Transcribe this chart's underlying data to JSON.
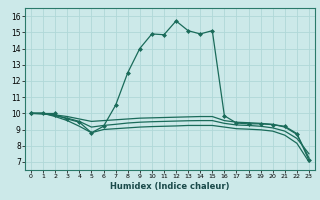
{
  "xlabel": "Humidex (Indice chaleur)",
  "xlim": [
    -0.5,
    23.5
  ],
  "ylim": [
    6.5,
    16.5
  ],
  "xticks": [
    0,
    1,
    2,
    3,
    4,
    5,
    6,
    7,
    8,
    9,
    10,
    11,
    12,
    13,
    14,
    15,
    16,
    17,
    18,
    19,
    20,
    21,
    22,
    23
  ],
  "yticks": [
    7,
    8,
    9,
    10,
    11,
    12,
    13,
    14,
    15,
    16
  ],
  "bg_color": "#cce9e9",
  "grid_color": "#b0d8d8",
  "line_color": "#1a6b5a",
  "series": [
    {
      "x": [
        0,
        1,
        2
      ],
      "y": [
        10,
        10,
        10
      ],
      "marker": true
    },
    {
      "x": [
        0,
        2,
        3,
        4,
        5,
        6,
        7,
        8,
        9,
        10,
        11,
        12,
        13,
        14,
        15,
        16,
        17,
        18,
        19,
        20,
        21,
        22,
        23
      ],
      "y": [
        10,
        9.9,
        9.65,
        9.45,
        8.8,
        9.2,
        10.5,
        12.5,
        14.0,
        14.9,
        14.85,
        15.7,
        15.1,
        14.9,
        15.1,
        9.85,
        9.4,
        9.35,
        9.35,
        9.3,
        9.2,
        8.75,
        7.1
      ],
      "marker": true
    },
    {
      "x": [
        0,
        1,
        2,
        3,
        4,
        5,
        6,
        7,
        8,
        9,
        10,
        11,
        12,
        13,
        14,
        15,
        16,
        17,
        18,
        19,
        20,
        21,
        22,
        23
      ],
      "y": [
        10,
        10,
        9.9,
        9.8,
        9.65,
        9.5,
        9.55,
        9.6,
        9.65,
        9.7,
        9.72,
        9.74,
        9.76,
        9.78,
        9.8,
        9.8,
        9.55,
        9.45,
        9.42,
        9.38,
        9.32,
        9.15,
        8.7,
        7.25
      ],
      "marker": false
    },
    {
      "x": [
        0,
        1,
        2,
        3,
        4,
        5,
        6,
        7,
        8,
        9,
        10,
        11,
        12,
        13,
        14,
        15,
        16,
        17,
        18,
        19,
        20,
        21,
        22,
        23
      ],
      "y": [
        10,
        10,
        9.85,
        9.7,
        9.5,
        9.15,
        9.25,
        9.32,
        9.4,
        9.45,
        9.48,
        9.5,
        9.52,
        9.54,
        9.55,
        9.55,
        9.38,
        9.28,
        9.25,
        9.2,
        9.1,
        8.9,
        8.45,
        7.5
      ],
      "marker": false
    },
    {
      "x": [
        0,
        1,
        2,
        3,
        4,
        5,
        6,
        7,
        8,
        9,
        10,
        11,
        12,
        13,
        14,
        15,
        16,
        17,
        18,
        19,
        20,
        21,
        22,
        23
      ],
      "y": [
        10,
        10,
        9.8,
        9.55,
        9.2,
        8.8,
        9.0,
        9.05,
        9.1,
        9.15,
        9.18,
        9.2,
        9.22,
        9.25,
        9.25,
        9.25,
        9.15,
        9.05,
        9.02,
        8.98,
        8.9,
        8.65,
        8.15,
        7.0
      ],
      "marker": false
    }
  ]
}
